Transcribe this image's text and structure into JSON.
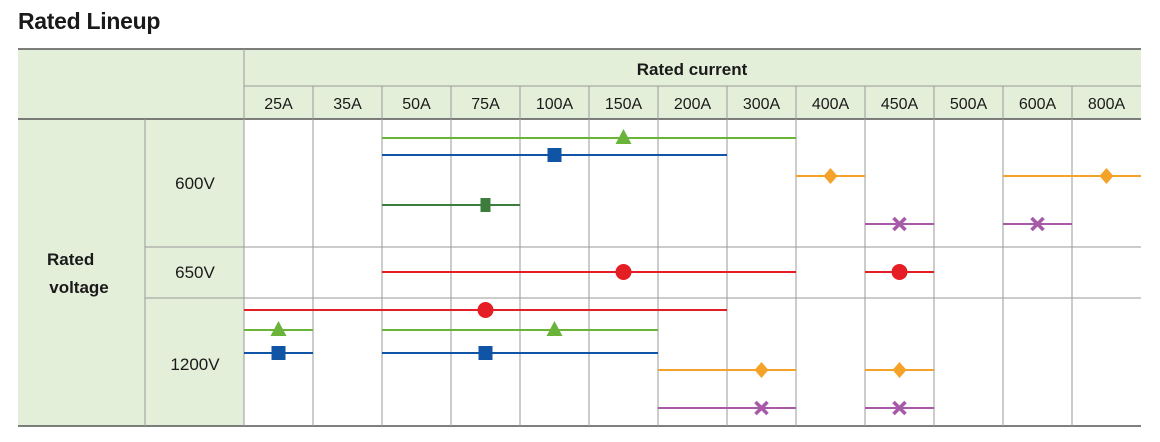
{
  "title": "Rated Lineup",
  "header": {
    "current_label": "Rated current",
    "voltage_label": "Rated voltage"
  },
  "currents": [
    "25A",
    "35A",
    "50A",
    "75A",
    "100A",
    "150A",
    "200A",
    "300A",
    "400A",
    "450A",
    "500A",
    "600A",
    "800A"
  ],
  "voltages": [
    "600V",
    "650V",
    "1200V"
  ],
  "colors": {
    "header_bg": "#e4efd9",
    "grid": "#9a9a9a",
    "green": "#6ab43a",
    "blue": "#1054a5",
    "dark_green": "#3c7d3d",
    "red": "#e51e25",
    "orange": "#f5a229",
    "purple": "#a75aa8"
  },
  "series": [
    {
      "name": "600V triangle series",
      "voltage": "600V",
      "from": "50A",
      "to": "300A",
      "marker": "triangle",
      "marker_at": "150A",
      "color": "green"
    },
    {
      "name": "600V square series",
      "voltage": "600V",
      "from": "50A",
      "to": "200A",
      "marker": "square",
      "marker_at": "100A",
      "color": "blue"
    },
    {
      "name": "600V small-square series",
      "voltage": "600V",
      "from": "50A",
      "to": "75A",
      "marker": "small-square",
      "marker_at": "75A",
      "color": "dark_green"
    },
    {
      "name": "600V diamond series A",
      "voltage": "600V",
      "from": "400A",
      "to": "400A",
      "marker": "diamond",
      "marker_at": "400A",
      "color": "orange"
    },
    {
      "name": "600V diamond series B",
      "voltage": "600V",
      "from": "600A",
      "to": "800A",
      "marker": "diamond",
      "marker_at": "800A",
      "color": "orange"
    },
    {
      "name": "600V cross series A",
      "voltage": "600V",
      "from": "450A",
      "to": "450A",
      "marker": "cross",
      "marker_at": "450A",
      "color": "purple"
    },
    {
      "name": "600V cross series B",
      "voltage": "600V",
      "from": "600A",
      "to": "600A",
      "marker": "cross",
      "marker_at": "600A",
      "color": "purple"
    },
    {
      "name": "650V circle series A",
      "voltage": "650V",
      "from": "50A",
      "to": "300A",
      "marker": "circle",
      "marker_at": "150A",
      "color": "red"
    },
    {
      "name": "650V circle series B",
      "voltage": "650V",
      "from": "450A",
      "to": "450A",
      "marker": "circle",
      "marker_at": "450A",
      "color": "red"
    },
    {
      "name": "1200V circle series",
      "voltage": "1200V",
      "from": "25A",
      "to": "200A",
      "marker": "circle",
      "marker_at": "75A",
      "color": "red"
    },
    {
      "name": "1200V triangle series A",
      "voltage": "1200V",
      "from": "25A",
      "to": "25A",
      "marker": "triangle",
      "marker_at": "25A",
      "color": "green"
    },
    {
      "name": "1200V triangle series B",
      "voltage": "1200V",
      "from": "50A",
      "to": "150A",
      "marker": "triangle",
      "marker_at": "100A",
      "color": "green"
    },
    {
      "name": "1200V square series A",
      "voltage": "1200V",
      "from": "25A",
      "to": "25A",
      "marker": "square",
      "marker_at": "25A",
      "color": "blue"
    },
    {
      "name": "1200V square series B",
      "voltage": "1200V",
      "from": "50A",
      "to": "150A",
      "marker": "square",
      "marker_at": "75A",
      "color": "blue"
    },
    {
      "name": "1200V diamond series A",
      "voltage": "1200V",
      "from": "200A",
      "to": "300A",
      "marker": "diamond",
      "marker_at": "300A",
      "color": "orange"
    },
    {
      "name": "1200V diamond series B",
      "voltage": "1200V",
      "from": "450A",
      "to": "450A",
      "marker": "diamond",
      "marker_at": "450A",
      "color": "orange"
    },
    {
      "name": "1200V cross series A",
      "voltage": "1200V",
      "from": "200A",
      "to": "300A",
      "marker": "cross",
      "marker_at": "300A",
      "color": "purple"
    },
    {
      "name": "1200V cross series B",
      "voltage": "1200V",
      "from": "450A",
      "to": "450A",
      "marker": "cross",
      "marker_at": "450A",
      "color": "purple"
    }
  ]
}
